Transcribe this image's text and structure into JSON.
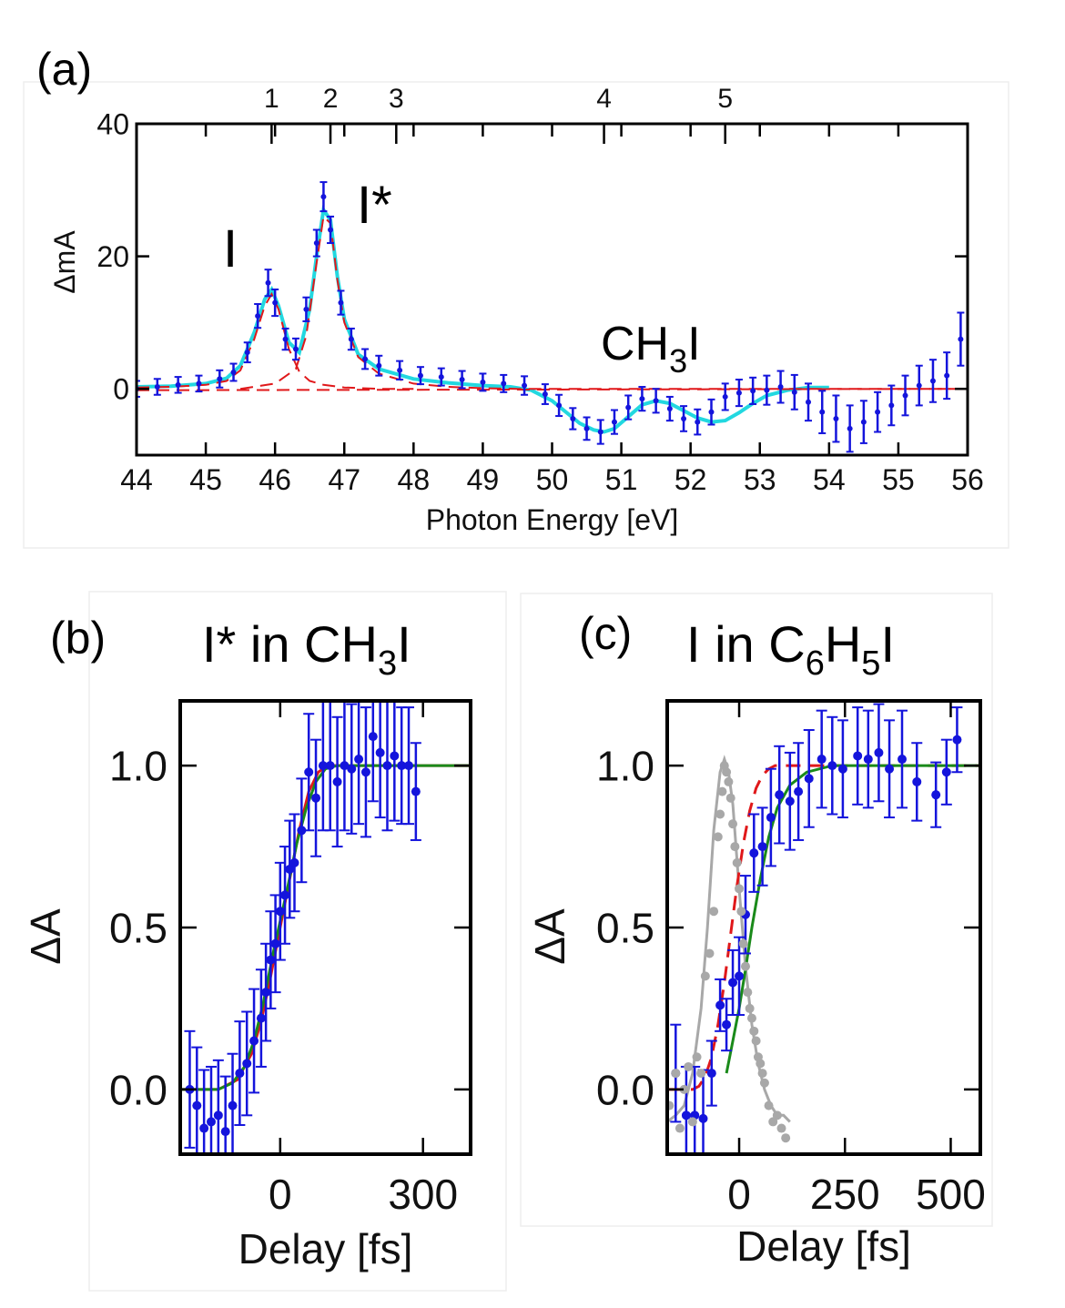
{
  "colors": {
    "data_points": "#1414dc",
    "fit_total": "#22d8e0",
    "fit_components": "#e0181a",
    "green_fit": "#1a8a1a",
    "cross_correlation": "#a8a8a8",
    "axes": "#000000"
  },
  "panels": {
    "a": {
      "tag": "(a)",
      "peak_I": "I",
      "peak_Istar": "I*",
      "band_main": "CH",
      "band_sub": "3",
      "band_tail": "I"
    },
    "b": {
      "tag": "(b)",
      "title_main": "I* in CH",
      "title_sub": "3",
      "title_tail": "I"
    },
    "c": {
      "tag": "(c)",
      "title_main": "I in C",
      "title_sub1": "6",
      "title_mid": "H",
      "title_sub2": "5",
      "title_tail": "I"
    }
  },
  "chart_data": [
    {
      "id": "a",
      "type": "line",
      "xlabel": "Photon Energy [eV]",
      "ylabel": "ΔmA",
      "xlim": [
        44,
        56
      ],
      "ylim": [
        -10,
        40
      ],
      "x_ticks": [
        44,
        45,
        46,
        47,
        48,
        49,
        50,
        51,
        52,
        53,
        54,
        55,
        56
      ],
      "y_ticks": [
        0,
        20,
        40
      ],
      "top_axis_ticks": [
        {
          "label": "1",
          "x": 45.95
        },
        {
          "label": "2",
          "x": 46.8
        },
        {
          "label": "3",
          "x": 47.75
        },
        {
          "label": "4",
          "x": 50.75
        },
        {
          "label": "5",
          "x": 52.5
        }
      ],
      "annotations": [
        "I",
        "I*",
        "CH3I"
      ],
      "series": [
        {
          "style": "points_with_errorbars",
          "x": [
            44.0,
            44.3,
            44.6,
            44.9,
            45.2,
            45.4,
            45.6,
            45.75,
            45.9,
            46.0,
            46.15,
            46.3,
            46.45,
            46.6,
            46.7,
            46.8,
            46.95,
            47.1,
            47.3,
            47.5,
            47.8,
            48.1,
            48.4,
            48.7,
            49.0,
            49.3,
            49.6,
            49.9,
            50.1,
            50.3,
            50.5,
            50.7,
            50.9,
            51.1,
            51.3,
            51.5,
            51.7,
            51.9,
            52.1,
            52.3,
            52.5,
            52.7,
            52.9,
            53.1,
            53.3,
            53.5,
            53.7,
            53.9,
            54.1,
            54.3,
            54.5,
            54.7,
            54.9,
            55.1,
            55.3,
            55.5,
            55.7,
            55.9
          ],
          "y": [
            0.0,
            0.3,
            0.6,
            0.8,
            1.5,
            2.5,
            5.5,
            11.0,
            16.0,
            13.0,
            7.5,
            6.0,
            12.0,
            22.0,
            29.0,
            24.0,
            13.0,
            7.5,
            4.5,
            3.5,
            2.8,
            2.0,
            1.8,
            1.4,
            1.0,
            0.8,
            0.5,
            -0.8,
            -2.5,
            -4.5,
            -6.0,
            -6.5,
            -5.0,
            -2.8,
            -1.5,
            -1.8,
            -3.0,
            -4.5,
            -5.0,
            -3.5,
            -1.2,
            -0.6,
            -0.3,
            -0.2,
            0.3,
            -0.5,
            -2.0,
            -3.5,
            -4.5,
            -6.0,
            -5.0,
            -3.5,
            -2.5,
            -1.0,
            0.5,
            1.2,
            2.0,
            7.5
          ],
          "err": [
            1.2,
            1.2,
            1.2,
            1.2,
            1.3,
            1.3,
            1.5,
            1.8,
            2.0,
            2.0,
            1.6,
            1.6,
            1.8,
            2.0,
            2.2,
            2.0,
            1.8,
            1.6,
            1.5,
            1.5,
            1.4,
            1.3,
            1.3,
            1.3,
            1.3,
            1.3,
            1.4,
            1.5,
            1.6,
            1.6,
            1.7,
            1.8,
            1.8,
            1.8,
            1.8,
            1.8,
            1.8,
            1.9,
            1.9,
            1.9,
            2.0,
            2.0,
            2.0,
            2.2,
            2.4,
            2.6,
            2.8,
            3.2,
            3.5,
            3.5,
            3.2,
            3.0,
            3.0,
            3.0,
            3.0,
            3.2,
            3.5,
            4.0
          ]
        },
        {
          "name": "total fit",
          "style": "solid",
          "x": [
            44.0,
            44.5,
            45.0,
            45.3,
            45.5,
            45.7,
            45.85,
            45.95,
            46.05,
            46.2,
            46.35,
            46.5,
            46.6,
            46.7,
            46.8,
            46.9,
            47.0,
            47.2,
            47.5,
            48.0,
            48.5,
            49.0,
            49.4,
            49.7,
            50.0,
            50.2,
            50.4,
            50.6,
            50.75,
            50.9,
            51.1,
            51.3,
            51.5,
            51.7,
            51.9,
            52.1,
            52.3,
            52.5,
            52.7,
            52.9,
            53.1,
            53.4,
            53.7,
            54.0
          ],
          "y": [
            0.3,
            0.4,
            0.8,
            1.6,
            3.5,
            8.5,
            13.5,
            15.0,
            12.5,
            7.0,
            5.5,
            12.0,
            20.0,
            27.0,
            25.5,
            17.0,
            10.5,
            5.2,
            3.0,
            1.5,
            0.9,
            0.5,
            0.3,
            -0.2,
            -1.8,
            -3.5,
            -5.2,
            -6.2,
            -6.5,
            -6.0,
            -4.2,
            -2.4,
            -1.8,
            -2.2,
            -3.3,
            -4.4,
            -5.0,
            -4.8,
            -3.6,
            -2.2,
            -1.0,
            -0.2,
            0.2,
            0.2
          ]
        },
        {
          "name": "I component",
          "style": "dashed",
          "x": [
            44.0,
            44.5,
            45.0,
            45.3,
            45.5,
            45.7,
            45.85,
            45.95,
            46.05,
            46.2,
            46.35,
            46.5,
            46.7,
            47.0,
            47.5,
            48.0
          ],
          "y": [
            0.2,
            0.3,
            0.6,
            1.2,
            2.8,
            7.5,
            12.5,
            14.3,
            12.0,
            6.0,
            2.6,
            1.2,
            0.6,
            0.2,
            0.0,
            0.0
          ]
        },
        {
          "name": "I* component",
          "style": "dashed",
          "x": [
            45.5,
            46.0,
            46.3,
            46.45,
            46.6,
            46.7,
            46.8,
            46.9,
            47.0,
            47.2,
            47.5,
            48.0,
            48.5,
            49.0,
            49.5,
            50.0,
            51.0,
            52.0,
            53.0,
            54.0,
            55.0,
            56.0
          ],
          "y": [
            0.0,
            0.8,
            3.0,
            8.0,
            19.0,
            26.0,
            25.0,
            16.5,
            10.0,
            4.8,
            2.3,
            0.8,
            0.3,
            0.1,
            0.0,
            0.0,
            0.0,
            0.0,
            0.0,
            0.0,
            0.0,
            0.0
          ]
        },
        {
          "name": "baseline",
          "style": "dashed",
          "x": [
            44.0,
            56.0
          ],
          "y": [
            -0.2,
            0.0
          ]
        }
      ]
    },
    {
      "id": "b",
      "type": "line",
      "xlabel": "Delay [fs]",
      "ylabel": "ΔA",
      "xlim": [
        -210,
        400
      ],
      "ylim": [
        -0.2,
        1.2
      ],
      "x_ticks": [
        {
          "label": "0",
          "value": 0
        },
        {
          "label": "300",
          "value": 300
        }
      ],
      "y_ticks": [
        {
          "label": "0.0",
          "value": 0.0
        },
        {
          "label": "0.5",
          "value": 0.5
        },
        {
          "label": "1.0",
          "value": 1.0
        }
      ],
      "series": [
        {
          "style": "points_with_errorbars",
          "x": [
            -190,
            -175,
            -160,
            -145,
            -130,
            -115,
            -100,
            -85,
            -70,
            -55,
            -40,
            -30,
            -20,
            -10,
            0,
            10,
            20,
            30,
            45,
            60,
            75,
            90,
            105,
            120,
            135,
            150,
            165,
            180,
            195,
            210,
            225,
            240,
            255,
            270,
            285
          ],
          "y": [
            0.0,
            -0.05,
            -0.12,
            -0.1,
            -0.08,
            -0.13,
            -0.05,
            0.05,
            0.08,
            0.15,
            0.22,
            0.3,
            0.4,
            0.45,
            0.55,
            0.6,
            0.68,
            0.7,
            0.8,
            0.98,
            0.9,
            1.0,
            1.0,
            0.95,
            1.0,
            0.99,
            1.02,
            0.98,
            1.09,
            1.04,
            1.0,
            1.03,
            1.0,
            1.0,
            0.92
          ],
          "err": [
            0.18,
            0.18,
            0.18,
            0.17,
            0.17,
            0.17,
            0.16,
            0.16,
            0.16,
            0.16,
            0.15,
            0.15,
            0.15,
            0.15,
            0.15,
            0.15,
            0.15,
            0.15,
            0.16,
            0.18,
            0.18,
            0.2,
            0.2,
            0.2,
            0.2,
            0.2,
            0.2,
            0.2,
            0.2,
            0.2,
            0.2,
            0.2,
            0.18,
            0.18,
            0.15
          ]
        },
        {
          "name": "fit step",
          "style": "solid",
          "x": [
            -210,
            -130,
            -90,
            -60,
            -40,
            -20,
            0,
            20,
            40,
            60,
            80,
            100,
            130,
            400
          ],
          "y": [
            0.0,
            0.0,
            0.03,
            0.11,
            0.21,
            0.35,
            0.5,
            0.65,
            0.8,
            0.92,
            0.98,
            1.0,
            1.0,
            1.0
          ]
        },
        {
          "name": "fit smooth",
          "style": "solid",
          "x": [
            -210,
            -130,
            -100,
            -75,
            -55,
            -35,
            -15,
            0,
            15,
            35,
            55,
            75,
            95,
            120,
            150,
            400
          ],
          "y": [
            0.0,
            0.0,
            0.02,
            0.07,
            0.15,
            0.27,
            0.42,
            0.52,
            0.62,
            0.76,
            0.87,
            0.95,
            0.99,
            1.0,
            1.0,
            1.0
          ]
        }
      ]
    },
    {
      "id": "c",
      "type": "line",
      "xlabel": "Delay [fs]",
      "ylabel": "ΔA",
      "xlim": [
        -170,
        570
      ],
      "ylim": [
        -0.2,
        1.2
      ],
      "x_ticks": [
        {
          "label": "0",
          "value": 0
        },
        {
          "label": "250",
          "value": 250
        },
        {
          "label": "500",
          "value": 500
        }
      ],
      "y_ticks": [
        {
          "label": "0.0",
          "value": 0.0
        },
        {
          "label": "0.5",
          "value": 0.5
        },
        {
          "label": "1.0",
          "value": 1.0
        }
      ],
      "series": [
        {
          "style": "points_with_errorbars",
          "x": [
            -150,
            -125,
            -105,
            -85,
            -65,
            -45,
            -30,
            -15,
            0,
            15,
            35,
            55,
            75,
            95,
            120,
            140,
            165,
            195,
            220,
            245,
            280,
            305,
            330,
            355,
            385,
            420,
            465,
            490,
            515
          ],
          "y": [
            0.05,
            -0.08,
            -0.08,
            -0.09,
            0.05,
            0.26,
            0.2,
            0.33,
            0.35,
            0.54,
            0.73,
            0.75,
            0.84,
            0.91,
            0.89,
            0.92,
            0.96,
            1.02,
            1.0,
            0.99,
            1.03,
            1.02,
            1.04,
            0.99,
            1.02,
            0.95,
            0.91,
            0.98,
            1.08
          ],
          "err": [
            0.15,
            0.15,
            0.15,
            0.15,
            0.1,
            0.08,
            0.08,
            0.1,
            0.12,
            0.12,
            0.12,
            0.12,
            0.15,
            0.15,
            0.15,
            0.15,
            0.15,
            0.15,
            0.15,
            0.15,
            0.15,
            0.15,
            0.15,
            0.15,
            0.15,
            0.12,
            0.1,
            0.1,
            0.1
          ]
        },
        {
          "name": "cross-correlation points",
          "style": "points",
          "x": [
            -165,
            -150,
            -140,
            -130,
            -120,
            -110,
            -100,
            -90,
            -80,
            -70,
            -60,
            -50,
            -45,
            -40,
            -35,
            -30,
            -25,
            -20,
            -15,
            -10,
            -5,
            0,
            5,
            10,
            15,
            20,
            25,
            30,
            35,
            40,
            45,
            50,
            55,
            60,
            70,
            80,
            90,
            100,
            110
          ],
          "y": [
            -0.05,
            0.05,
            -0.12,
            0.0,
            0.07,
            -0.1,
            0.1,
            0.05,
            0.35,
            0.42,
            0.55,
            0.78,
            0.85,
            0.92,
            1.0,
            0.98,
            0.95,
            0.9,
            0.82,
            0.75,
            0.7,
            0.62,
            0.55,
            0.45,
            0.38,
            0.3,
            0.25,
            0.22,
            0.18,
            0.15,
            0.1,
            0.08,
            0.05,
            0.02,
            -0.05,
            -0.1,
            -0.08,
            -0.12,
            -0.15
          ]
        },
        {
          "name": "cross-correlation fit",
          "style": "solid",
          "x": [
            -170,
            -150,
            -130,
            -110,
            -90,
            -75,
            -60,
            -45,
            -35,
            -25,
            -15,
            0,
            15,
            30,
            45,
            60,
            75,
            90,
            105,
            120
          ],
          "y": [
            -0.1,
            -0.08,
            -0.05,
            0.05,
            0.25,
            0.5,
            0.8,
            0.98,
            1.02,
            0.98,
            0.88,
            0.62,
            0.38,
            0.2,
            0.08,
            0.0,
            -0.05,
            -0.08,
            -0.08,
            -0.1
          ]
        },
        {
          "name": "red dashed fit",
          "style": "dashed",
          "x": [
            -170,
            -110,
            -95,
            -80,
            -65,
            -50,
            -35,
            -20,
            -5,
            10,
            25,
            40,
            55,
            70,
            85,
            110,
            570
          ],
          "y": [
            0.0,
            0.0,
            0.01,
            0.04,
            0.1,
            0.2,
            0.33,
            0.48,
            0.63,
            0.76,
            0.86,
            0.93,
            0.97,
            0.99,
            1.0,
            1.0,
            1.0
          ]
        },
        {
          "name": "green fit",
          "style": "solid",
          "x": [
            -30,
            -15,
            0,
            15,
            30,
            50,
            70,
            90,
            120,
            160,
            220,
            570
          ],
          "y": [
            0.05,
            0.15,
            0.25,
            0.37,
            0.5,
            0.65,
            0.78,
            0.87,
            0.94,
            0.98,
            1.0,
            1.0
          ]
        }
      ]
    }
  ]
}
